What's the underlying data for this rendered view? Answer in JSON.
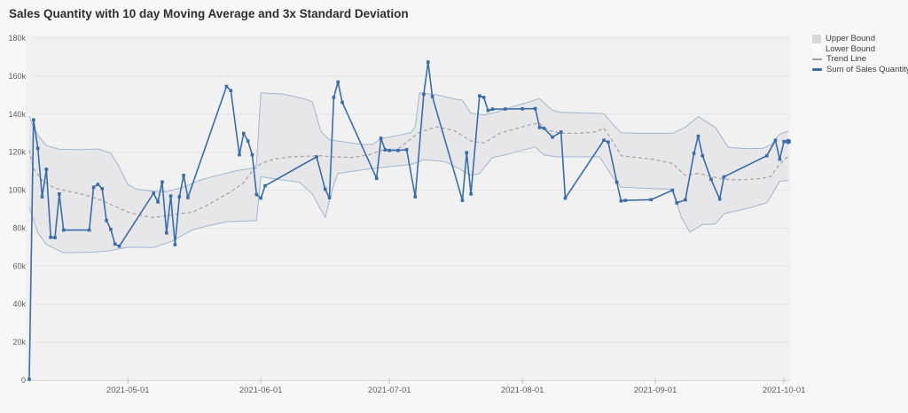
{
  "chart_data": {
    "type": "line",
    "title": "Sales Quantity with 10 day Moving Average and 3x Standard Deviation",
    "colors": {
      "background": "#f7f7f7",
      "plot_background": "#f1f1f2",
      "grid": "#e4e4e6",
      "axis": "#d8d8d8",
      "tick": "#c6c6c6",
      "band_fill": "#e7e7ea",
      "bound_stroke": "#9fb6d1",
      "trend": "#a6a6a6",
      "line": "#3a6ca8",
      "label": "#5f5f5f",
      "title": "#2e2e2e"
    },
    "x_axis": {
      "domain": [
        "2021-04-08",
        "2021-10-02"
      ],
      "ticks": [
        "2021-05-01",
        "2021-06-01",
        "2021-07-01",
        "2021-08-01",
        "2021-09-01",
        "2021-10-01"
      ]
    },
    "y_axis": {
      "min": 0,
      "max": 180,
      "unit": "k",
      "ticks": [
        {
          "v": 0,
          "label": "0"
        },
        {
          "v": 20,
          "label": "20k"
        },
        {
          "v": 40,
          "label": "40k"
        },
        {
          "v": 60,
          "label": "60k"
        },
        {
          "v": 80,
          "label": "80k"
        },
        {
          "v": 100,
          "label": "100k"
        },
        {
          "v": 120,
          "label": "120k"
        },
        {
          "v": 140,
          "label": "140k"
        },
        {
          "v": 160,
          "label": "160k"
        },
        {
          "v": 180,
          "label": "180k"
        }
      ]
    },
    "legend": {
      "position": "top-right",
      "items": [
        {
          "label": "Upper Bound",
          "swatch": "fill",
          "color": "#d8d8da"
        },
        {
          "label": "Lower Bound",
          "swatch": "fill",
          "color": "#fbfbfc"
        },
        {
          "label": "Trend Line",
          "swatch": "dash",
          "color": "#a0a0a0"
        },
        {
          "label": "Sum of Sales Quantity",
          "swatch": "line",
          "color": "#3a6ca8"
        }
      ]
    },
    "series": {
      "sum_of_sales_quantity": {
        "name": "Sum of Sales Quantity",
        "unit": "thousands",
        "points": [
          [
            "2021-04-08",
            0.5
          ],
          [
            "2021-04-09",
            137
          ],
          [
            "2021-04-10",
            122
          ],
          [
            "2021-04-11",
            96.5
          ],
          [
            "2021-04-12",
            111
          ],
          [
            "2021-04-13",
            75.2
          ],
          [
            "2021-04-14",
            75
          ],
          [
            "2021-04-15",
            98
          ],
          [
            "2021-04-16",
            79
          ],
          [
            "2021-04-22",
            79
          ],
          [
            "2021-04-23",
            101.5
          ],
          [
            "2021-04-24",
            103
          ],
          [
            "2021-04-25",
            100.8
          ],
          [
            "2021-04-26",
            84
          ],
          [
            "2021-04-27",
            79.4
          ],
          [
            "2021-04-28",
            71.6
          ],
          [
            "2021-04-29",
            70.5
          ],
          [
            "2021-05-07",
            98.4
          ],
          [
            "2021-05-08",
            93.8
          ],
          [
            "2021-05-09",
            104.3
          ],
          [
            "2021-05-10",
            77.5
          ],
          [
            "2021-05-11",
            96.9
          ],
          [
            "2021-05-12",
            71.3
          ],
          [
            "2021-05-13",
            96.5
          ],
          [
            "2021-05-14",
            107.8
          ],
          [
            "2021-05-15",
            96.1
          ],
          [
            "2021-05-24",
            154.6
          ],
          [
            "2021-05-25",
            152.4
          ],
          [
            "2021-05-27",
            118.6
          ],
          [
            "2021-05-28",
            129.9
          ],
          [
            "2021-05-29",
            125.9
          ],
          [
            "2021-05-30",
            118.6
          ],
          [
            "2021-05-31",
            97.7
          ],
          [
            "2021-06-01",
            95.8
          ],
          [
            "2021-06-02",
            102.3
          ],
          [
            "2021-06-14",
            117.5
          ],
          [
            "2021-06-16",
            100.5
          ],
          [
            "2021-06-17",
            96
          ],
          [
            "2021-06-18",
            148.8
          ],
          [
            "2021-06-19",
            156.9
          ],
          [
            "2021-06-20",
            146.2
          ],
          [
            "2021-06-28",
            106.2
          ],
          [
            "2021-06-29",
            127.3
          ],
          [
            "2021-06-30",
            121.2
          ],
          [
            "2021-07-01",
            120.9
          ],
          [
            "2021-07-03",
            120.9
          ],
          [
            "2021-07-05",
            121.3
          ],
          [
            "2021-07-07",
            96.5
          ],
          [
            "2021-07-09",
            150.5
          ],
          [
            "2021-07-10",
            167.4
          ],
          [
            "2021-07-11",
            149.2
          ],
          [
            "2021-07-18",
            94.6
          ],
          [
            "2021-07-19",
            119.7
          ],
          [
            "2021-07-20",
            98
          ],
          [
            "2021-07-22",
            149.6
          ],
          [
            "2021-07-23",
            148.8
          ],
          [
            "2021-07-24",
            141.9
          ],
          [
            "2021-07-25",
            142.6
          ],
          [
            "2021-07-28",
            142.7
          ],
          [
            "2021-08-01",
            142.8
          ],
          [
            "2021-08-04",
            142.9
          ],
          [
            "2021-08-05",
            133
          ],
          [
            "2021-08-06",
            132.6
          ],
          [
            "2021-08-08",
            127.9
          ],
          [
            "2021-08-10",
            130.6
          ],
          [
            "2021-08-11",
            95.8
          ],
          [
            "2021-08-20",
            126.3
          ],
          [
            "2021-08-21",
            125.3
          ],
          [
            "2021-08-23",
            104.2
          ],
          [
            "2021-08-24",
            94.3
          ],
          [
            "2021-08-25",
            94.6
          ],
          [
            "2021-08-31",
            95
          ],
          [
            "2021-09-05",
            100
          ],
          [
            "2021-09-06",
            93.3
          ],
          [
            "2021-09-08",
            94.9
          ],
          [
            "2021-09-10",
            119.4
          ],
          [
            "2021-09-11",
            128.4
          ],
          [
            "2021-09-12",
            118.1
          ],
          [
            "2021-09-14",
            105.7
          ],
          [
            "2021-09-16",
            95.3
          ],
          [
            "2021-09-17",
            107
          ],
          [
            "2021-09-27",
            118.1
          ],
          [
            "2021-09-29",
            126.3
          ],
          [
            "2021-09-30",
            116.3
          ],
          [
            "2021-10-01",
            125.6
          ],
          [
            "2021-10-02",
            125.6
          ]
        ]
      },
      "upper_bound": {
        "name": "Upper Bound",
        "unit": "thousands",
        "points": [
          [
            "2021-04-08",
            139
          ],
          [
            "2021-04-09",
            133
          ],
          [
            "2021-04-10",
            129
          ],
          [
            "2021-04-12",
            123.5
          ],
          [
            "2021-04-15",
            121.5
          ],
          [
            "2021-04-20",
            121.3
          ],
          [
            "2021-04-24",
            121.7
          ],
          [
            "2021-04-27",
            119.5
          ],
          [
            "2021-04-29",
            112
          ],
          [
            "2021-05-01",
            103
          ],
          [
            "2021-05-03",
            100.5
          ],
          [
            "2021-05-07",
            99.4
          ],
          [
            "2021-05-10",
            99.2
          ],
          [
            "2021-05-14",
            101.6
          ],
          [
            "2021-05-18",
            105.4
          ],
          [
            "2021-05-22",
            107.8
          ],
          [
            "2021-05-26",
            110.1
          ],
          [
            "2021-05-30",
            111.6
          ],
          [
            "2021-05-31",
            113
          ],
          [
            "2021-06-01",
            151.2
          ],
          [
            "2021-06-06",
            150.6
          ],
          [
            "2021-06-11",
            148.2
          ],
          [
            "2021-06-13",
            146.5
          ],
          [
            "2021-06-15",
            131
          ],
          [
            "2021-06-17",
            126.4
          ],
          [
            "2021-06-20",
            125.6
          ],
          [
            "2021-06-24",
            124.2
          ],
          [
            "2021-06-27",
            124
          ],
          [
            "2021-06-29",
            127.1
          ],
          [
            "2021-07-02",
            128.4
          ],
          [
            "2021-07-06",
            130.2
          ],
          [
            "2021-07-07",
            133.6
          ],
          [
            "2021-07-08",
            151.2
          ],
          [
            "2021-07-12",
            150.2
          ],
          [
            "2021-07-16",
            148
          ],
          [
            "2021-07-18",
            147.3
          ],
          [
            "2021-07-20",
            140.5
          ],
          [
            "2021-07-23",
            139.5
          ],
          [
            "2021-07-26",
            141
          ],
          [
            "2021-07-29",
            143.5
          ],
          [
            "2021-08-02",
            146
          ],
          [
            "2021-08-05",
            148.2
          ],
          [
            "2021-08-08",
            142
          ],
          [
            "2021-08-10",
            140.9
          ],
          [
            "2021-08-15",
            140.6
          ],
          [
            "2021-08-20",
            140.3
          ],
          [
            "2021-08-22",
            134.9
          ],
          [
            "2021-08-24",
            130.2
          ],
          [
            "2021-08-28",
            129.9
          ],
          [
            "2021-09-05",
            129.9
          ],
          [
            "2021-09-08",
            133.2
          ],
          [
            "2021-09-11",
            138.7
          ],
          [
            "2021-09-15",
            133
          ],
          [
            "2021-09-17",
            126
          ],
          [
            "2021-09-18",
            122.5
          ],
          [
            "2021-09-22",
            121.9
          ],
          [
            "2021-09-26",
            122
          ],
          [
            "2021-09-28",
            124
          ],
          [
            "2021-09-30",
            129.5
          ],
          [
            "2021-10-02",
            131
          ]
        ]
      },
      "lower_bound": {
        "name": "Lower Bound",
        "unit": "thousands",
        "points": [
          [
            "2021-04-08",
            91
          ],
          [
            "2021-04-10",
            77.5
          ],
          [
            "2021-04-12",
            71.3
          ],
          [
            "2021-04-16",
            67
          ],
          [
            "2021-04-23",
            67.4
          ],
          [
            "2021-04-27",
            68.2
          ],
          [
            "2021-05-01",
            70
          ],
          [
            "2021-05-07",
            69.8
          ],
          [
            "2021-05-11",
            72.9
          ],
          [
            "2021-05-16",
            79.1
          ],
          [
            "2021-05-20",
            81.4
          ],
          [
            "2021-05-24",
            83.4
          ],
          [
            "2021-05-28",
            83.7
          ],
          [
            "2021-05-31",
            84
          ],
          [
            "2021-06-01",
            107
          ],
          [
            "2021-06-06",
            105.4
          ],
          [
            "2021-06-10",
            104.2
          ],
          [
            "2021-06-13",
            98
          ],
          [
            "2021-06-16",
            85.6
          ],
          [
            "2021-06-18",
            103
          ],
          [
            "2021-06-19",
            108.8
          ],
          [
            "2021-06-22",
            109.8
          ],
          [
            "2021-06-27",
            111.3
          ],
          [
            "2021-07-01",
            112.4
          ],
          [
            "2021-07-06",
            113.5
          ],
          [
            "2021-07-09",
            116
          ],
          [
            "2021-07-14",
            115
          ],
          [
            "2021-07-18",
            110.4
          ],
          [
            "2021-07-20",
            107.8
          ],
          [
            "2021-07-22",
            108.8
          ],
          [
            "2021-07-25",
            117.1
          ],
          [
            "2021-07-28",
            118.6
          ],
          [
            "2021-08-04",
            122.8
          ],
          [
            "2021-08-06",
            118.6
          ],
          [
            "2021-08-09",
            117.5
          ],
          [
            "2021-08-19",
            117.5
          ],
          [
            "2021-08-22",
            107
          ],
          [
            "2021-08-24",
            101.6
          ],
          [
            "2021-08-29",
            101
          ],
          [
            "2021-09-05",
            100.5
          ],
          [
            "2021-09-07",
            86
          ],
          [
            "2021-09-09",
            78
          ],
          [
            "2021-09-12",
            81.9
          ],
          [
            "2021-09-15",
            82.2
          ],
          [
            "2021-09-17",
            87.6
          ],
          [
            "2021-09-23",
            90.7
          ],
          [
            "2021-09-27",
            93.4
          ],
          [
            "2021-09-29",
            100.8
          ],
          [
            "2021-09-30",
            104.7
          ],
          [
            "2021-10-02",
            105.1
          ]
        ]
      },
      "trend_line": {
        "name": "Trend Line",
        "unit": "thousands",
        "points": [
          [
            "2021-04-08",
            121
          ],
          [
            "2021-04-09",
            111.5
          ],
          [
            "2021-04-11",
            105
          ],
          [
            "2021-04-14",
            101
          ],
          [
            "2021-04-17",
            99.5
          ],
          [
            "2021-04-21",
            97.5
          ],
          [
            "2021-04-25",
            94.5
          ],
          [
            "2021-04-28",
            91.5
          ],
          [
            "2021-05-01",
            88.5
          ],
          [
            "2021-05-04",
            86.6
          ],
          [
            "2021-05-07",
            85.6
          ],
          [
            "2021-05-10",
            86.5
          ],
          [
            "2021-05-13",
            87.6
          ],
          [
            "2021-05-16",
            88.4
          ],
          [
            "2021-05-19",
            91.5
          ],
          [
            "2021-05-22",
            95.3
          ],
          [
            "2021-05-25",
            99.2
          ],
          [
            "2021-05-28",
            103.9
          ],
          [
            "2021-05-30",
            110.1
          ],
          [
            "2021-06-01",
            114
          ],
          [
            "2021-06-04",
            116.3
          ],
          [
            "2021-06-08",
            117.5
          ],
          [
            "2021-06-12",
            117.9
          ],
          [
            "2021-06-15",
            118.1
          ],
          [
            "2021-06-18",
            117.5
          ],
          [
            "2021-06-22",
            117.2
          ],
          [
            "2021-06-26",
            118.5
          ],
          [
            "2021-06-29",
            120.9
          ],
          [
            "2021-07-03",
            121.7
          ],
          [
            "2021-07-08",
            130.5
          ],
          [
            "2021-07-12",
            133.3
          ],
          [
            "2021-07-16",
            131.5
          ],
          [
            "2021-07-20",
            125.9
          ],
          [
            "2021-07-23",
            124.8
          ],
          [
            "2021-07-27",
            130.2
          ],
          [
            "2021-07-31",
            132.6
          ],
          [
            "2021-08-03",
            134.6
          ],
          [
            "2021-08-05",
            135.2
          ],
          [
            "2021-08-07",
            131.5
          ],
          [
            "2021-08-10",
            129.9
          ],
          [
            "2021-08-14",
            129.9
          ],
          [
            "2021-08-18",
            130.6
          ],
          [
            "2021-08-20",
            132.6
          ],
          [
            "2021-08-22",
            125.9
          ],
          [
            "2021-08-24",
            118.1
          ],
          [
            "2021-08-28",
            117.1
          ],
          [
            "2021-09-01",
            116
          ],
          [
            "2021-09-05",
            114
          ],
          [
            "2021-09-08",
            107.8
          ],
          [
            "2021-09-11",
            108.8
          ],
          [
            "2021-09-14",
            107.3
          ],
          [
            "2021-09-17",
            105.7
          ],
          [
            "2021-09-20",
            105.4
          ],
          [
            "2021-09-23",
            105.7
          ],
          [
            "2021-09-26",
            106.2
          ],
          [
            "2021-09-28",
            107.3
          ],
          [
            "2021-09-29",
            110.8
          ],
          [
            "2021-10-01",
            116.3
          ],
          [
            "2021-10-02",
            117.5
          ]
        ]
      }
    }
  }
}
